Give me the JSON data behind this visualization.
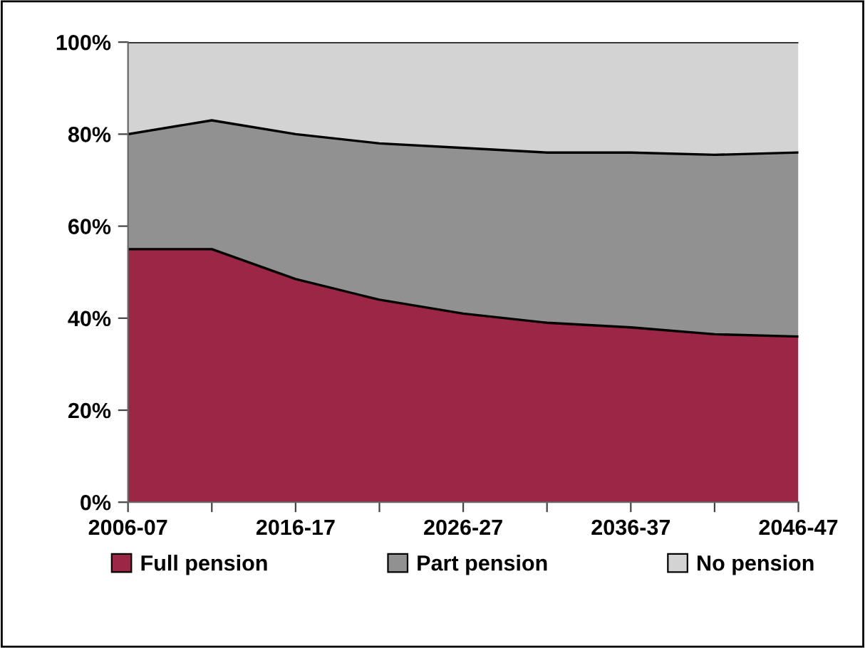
{
  "chart_data": {
    "type": "area",
    "stacked": true,
    "categories": [
      "2006-07",
      null,
      "2016-17",
      null,
      "2026-27",
      null,
      "2036-37",
      null,
      "2046-47"
    ],
    "series": [
      {
        "name": "Full pension",
        "color": "#9b2646",
        "values": [
          55,
          55,
          48.5,
          44,
          41,
          39,
          38,
          36.5,
          36
        ]
      },
      {
        "name": "Part pension",
        "color": "#919191",
        "values": [
          25,
          28,
          31.5,
          34,
          36,
          37,
          38,
          39,
          40
        ]
      },
      {
        "name": "No pension",
        "color": "#d3d3d3",
        "values": [
          20,
          17,
          20,
          22,
          23,
          24,
          24,
          24.5,
          24
        ]
      }
    ],
    "ylim": [
      0,
      100
    ],
    "yticks": [
      {
        "value": 0,
        "label": "0%"
      },
      {
        "value": 20,
        "label": "20%"
      },
      {
        "value": 40,
        "label": "40%"
      },
      {
        "value": 60,
        "label": "60%"
      },
      {
        "value": 80,
        "label": "80%"
      },
      {
        "value": 100,
        "label": "100%"
      }
    ],
    "legend": "bottom",
    "grid": false
  }
}
